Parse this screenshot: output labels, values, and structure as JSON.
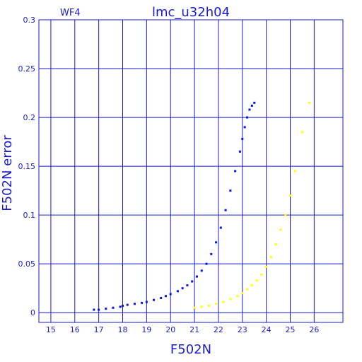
{
  "chart_data": {
    "type": "scatter",
    "title": "lmc_u32h04",
    "panel_label": "WF4",
    "xlabel": "F502N",
    "ylabel": "F502N error",
    "xlim": [
      14.5,
      27.2
    ],
    "ylim": [
      -0.01,
      0.3
    ],
    "xticks": [
      15,
      16,
      17,
      18,
      19,
      20,
      21,
      22,
      23,
      24,
      25,
      26
    ],
    "yticks": [
      0,
      0.05,
      0.1,
      0.15,
      0.2,
      0.25,
      0.3
    ],
    "ytick_labels": [
      "0",
      "0.05",
      "0.1",
      "0.15",
      "0.2",
      "0.25",
      "0.3"
    ],
    "grid": true,
    "colors": {
      "frame": "#1a1acc",
      "series_blue": "#0a14e6",
      "series_yellow": "#ffff00"
    },
    "series": [
      {
        "color": "#0a14e6",
        "x": [
          16.8,
          17.0,
          17.3,
          17.6,
          17.9,
          18.0,
          18.2,
          18.5,
          18.8,
          19.0,
          19.3,
          19.6,
          19.8,
          20.0,
          20.3,
          20.5,
          20.7,
          20.9,
          21.1,
          21.3,
          21.5,
          21.7,
          21.9,
          22.1,
          22.3,
          22.5,
          22.7,
          22.9,
          23.0,
          23.1,
          23.2,
          23.3,
          23.4,
          23.5
        ],
        "y": [
          0.003,
          0.003,
          0.004,
          0.005,
          0.006,
          0.007,
          0.008,
          0.009,
          0.01,
          0.011,
          0.013,
          0.015,
          0.017,
          0.019,
          0.022,
          0.025,
          0.028,
          0.032,
          0.037,
          0.043,
          0.05,
          0.06,
          0.072,
          0.087,
          0.105,
          0.125,
          0.145,
          0.165,
          0.178,
          0.19,
          0.2,
          0.208,
          0.212,
          0.215
        ]
      },
      {
        "color": "#ffff00",
        "x": [
          21.0,
          21.3,
          21.6,
          21.9,
          22.2,
          22.5,
          22.8,
          23.0,
          23.2,
          23.4,
          23.6,
          23.8,
          24.0,
          24.2,
          24.4,
          24.6,
          24.8,
          25.0,
          25.2,
          25.5,
          25.8
        ],
        "y": [
          0.005,
          0.006,
          0.007,
          0.009,
          0.011,
          0.014,
          0.017,
          0.02,
          0.024,
          0.028,
          0.033,
          0.039,
          0.047,
          0.057,
          0.07,
          0.085,
          0.1,
          0.12,
          0.145,
          0.185,
          0.215
        ]
      }
    ]
  }
}
